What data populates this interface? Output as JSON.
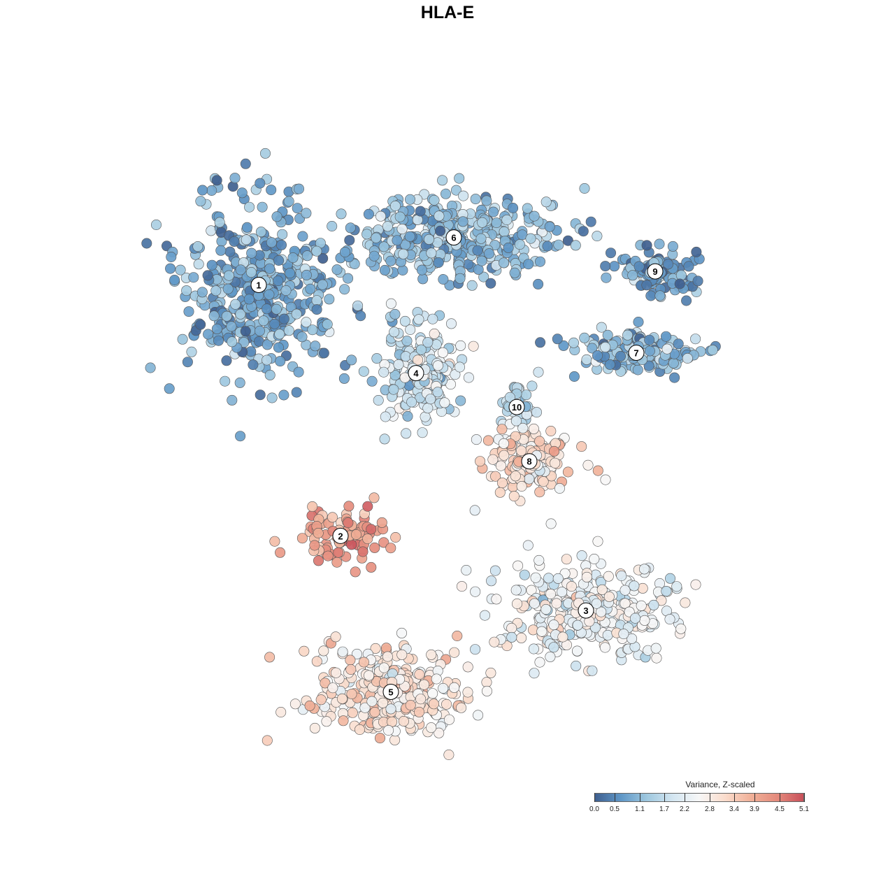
{
  "chart_data": {
    "type": "scatter",
    "title": "HLA-E",
    "xlabel": "",
    "ylabel": "",
    "grid": false,
    "legend": {
      "title": "Variance, Z-scaled",
      "placement": "bottom-right",
      "range": [
        0.0,
        5.1
      ],
      "tick_labels": [
        "0.0",
        "0.5",
        "1.1",
        "1.7",
        "2.2",
        "2.8",
        "3.4",
        "3.9",
        "4.5",
        "5.1"
      ],
      "colors": [
        "#3f5f8f",
        "#5f97c7",
        "#9fc8df",
        "#d4e6f1",
        "#f7f7f7",
        "#fadccc",
        "#f0b098",
        "#e48a7c",
        "#c8505a"
      ]
    },
    "clusters": [
      {
        "label": "1",
        "x": -30,
        "y": 25,
        "color_value": 0.9
      },
      {
        "label": "2",
        "x": -17,
        "y": -12,
        "color_value": 4.2
      },
      {
        "label": "3",
        "x": 22,
        "y": -23,
        "color_value": 2.4
      },
      {
        "label": "4",
        "x": -5,
        "y": 12,
        "color_value": 1.8
      },
      {
        "label": "5",
        "x": -9,
        "y": -35,
        "color_value": 3.0
      },
      {
        "label": "6",
        "x": 1,
        "y": 32,
        "color_value": 1.1
      },
      {
        "label": "7",
        "x": 30,
        "y": 15,
        "color_value": 1.1
      },
      {
        "label": "8",
        "x": 13,
        "y": -1,
        "color_value": 3.0
      },
      {
        "label": "9",
        "x": 33,
        "y": 27,
        "color_value": 0.7
      },
      {
        "label": "10",
        "x": 11,
        "y": 7,
        "color_value": 1.7
      }
    ]
  }
}
